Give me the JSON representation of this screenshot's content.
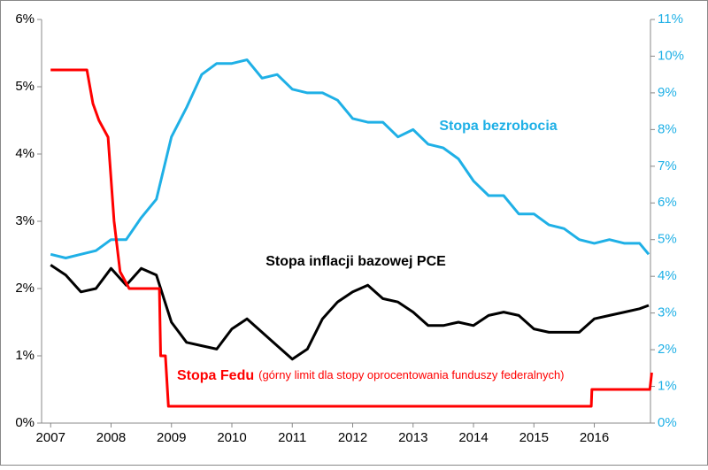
{
  "chart_data": {
    "type": "line",
    "xlim": [
      2006.85,
      2016.93
    ],
    "xticks": [
      2007,
      2008,
      2009,
      2010,
      2011,
      2012,
      2013,
      2014,
      2015,
      2016
    ],
    "ylim": [
      0,
      6
    ],
    "yticks": [
      {
        "value": 0,
        "label": "0%"
      },
      {
        "value": 1,
        "label": "1%"
      },
      {
        "value": 2,
        "label": "2%"
      },
      {
        "value": 3,
        "label": "3%"
      },
      {
        "value": 4,
        "label": "4%"
      },
      {
        "value": 5,
        "label": "5%"
      },
      {
        "value": 6,
        "label": "6%"
      }
    ],
    "y2lim": [
      0,
      11
    ],
    "y2ticks": [
      {
        "value": 0,
        "label": "0%"
      },
      {
        "value": 1,
        "label": "1%"
      },
      {
        "value": 2,
        "label": "2%"
      },
      {
        "value": 3,
        "label": "3%"
      },
      {
        "value": 4,
        "label": "4%"
      },
      {
        "value": 5,
        "label": "5%"
      },
      {
        "value": 6,
        "label": "6%"
      },
      {
        "value": 7,
        "label": "7%"
      },
      {
        "value": 8,
        "label": "8%"
      },
      {
        "value": 9,
        "label": "9%"
      },
      {
        "value": 10,
        "label": "10%"
      },
      {
        "value": 11,
        "label": "11%"
      }
    ],
    "grid": false,
    "series": [
      {
        "name": "Stopa bezrobocia",
        "color": "#1fb0e6",
        "axis": "y2",
        "x": [
          2007.0,
          2007.25,
          2007.5,
          2007.75,
          2008.0,
          2008.25,
          2008.5,
          2008.75,
          2009.0,
          2009.25,
          2009.5,
          2009.75,
          2010.0,
          2010.25,
          2010.5,
          2010.75,
          2011.0,
          2011.25,
          2011.5,
          2011.75,
          2012.0,
          2012.25,
          2012.5,
          2012.75,
          2013.0,
          2013.25,
          2013.5,
          2013.75,
          2014.0,
          2014.25,
          2014.5,
          2014.75,
          2015.0,
          2015.25,
          2015.5,
          2015.75,
          2016.0,
          2016.25,
          2016.5,
          2016.75,
          2016.9
        ],
        "values": [
          4.6,
          4.5,
          4.6,
          4.7,
          5.0,
          5.0,
          5.6,
          6.1,
          7.8,
          8.6,
          9.5,
          9.8,
          9.8,
          9.9,
          9.4,
          9.5,
          9.1,
          9.0,
          9.0,
          8.8,
          8.3,
          8.2,
          8.2,
          7.8,
          8.0,
          7.6,
          7.5,
          7.2,
          6.6,
          6.2,
          6.2,
          5.7,
          5.7,
          5.4,
          5.3,
          5.0,
          4.9,
          5.0,
          4.9,
          4.9,
          4.6
        ]
      },
      {
        "name": "Stopa inflacji bazowej PCE",
        "color": "#000000",
        "x": [
          2007.0,
          2007.25,
          2007.5,
          2007.75,
          2008.0,
          2008.25,
          2008.5,
          2008.75,
          2009.0,
          2009.25,
          2009.5,
          2009.75,
          2010.0,
          2010.25,
          2010.5,
          2010.75,
          2011.0,
          2011.25,
          2011.5,
          2011.75,
          2012.0,
          2012.25,
          2012.5,
          2012.75,
          2013.0,
          2013.25,
          2013.5,
          2013.75,
          2014.0,
          2014.25,
          2014.5,
          2014.75,
          2015.0,
          2015.25,
          2015.5,
          2015.75,
          2016.0,
          2016.25,
          2016.5,
          2016.75,
          2016.9
        ],
        "values": [
          2.35,
          2.2,
          1.95,
          2.0,
          2.3,
          2.05,
          2.3,
          2.2,
          1.5,
          1.2,
          1.15,
          1.1,
          1.4,
          1.55,
          1.35,
          1.15,
          0.95,
          1.1,
          1.55,
          1.8,
          1.95,
          2.05,
          1.85,
          1.8,
          1.65,
          1.45,
          1.45,
          1.5,
          1.45,
          1.6,
          1.65,
          1.6,
          1.4,
          1.35,
          1.35,
          1.35,
          1.55,
          1.6,
          1.65,
          1.7,
          1.75
        ]
      },
      {
        "name": "Stopa Fedu",
        "color": "#ff0000",
        "x": [
          2007.0,
          2007.6,
          2007.7,
          2007.8,
          2007.95,
          2008.05,
          2008.15,
          2008.3,
          2008.8,
          2008.82,
          2008.9,
          2008.95,
          2015.95,
          2015.96,
          2016.92,
          2016.95
        ],
        "values": [
          5.25,
          5.25,
          4.75,
          4.5,
          4.25,
          3.0,
          2.25,
          2.0,
          2.0,
          1.0,
          1.0,
          0.25,
          0.25,
          0.5,
          0.5,
          0.75
        ]
      }
    ],
    "annotations": [
      "Stopa bezrobocia",
      "Stopa inflacji bazowej PCE",
      "Stopa Fedu",
      "(górny limit dla stopy oprocentowania funduszy federalnych)"
    ]
  }
}
